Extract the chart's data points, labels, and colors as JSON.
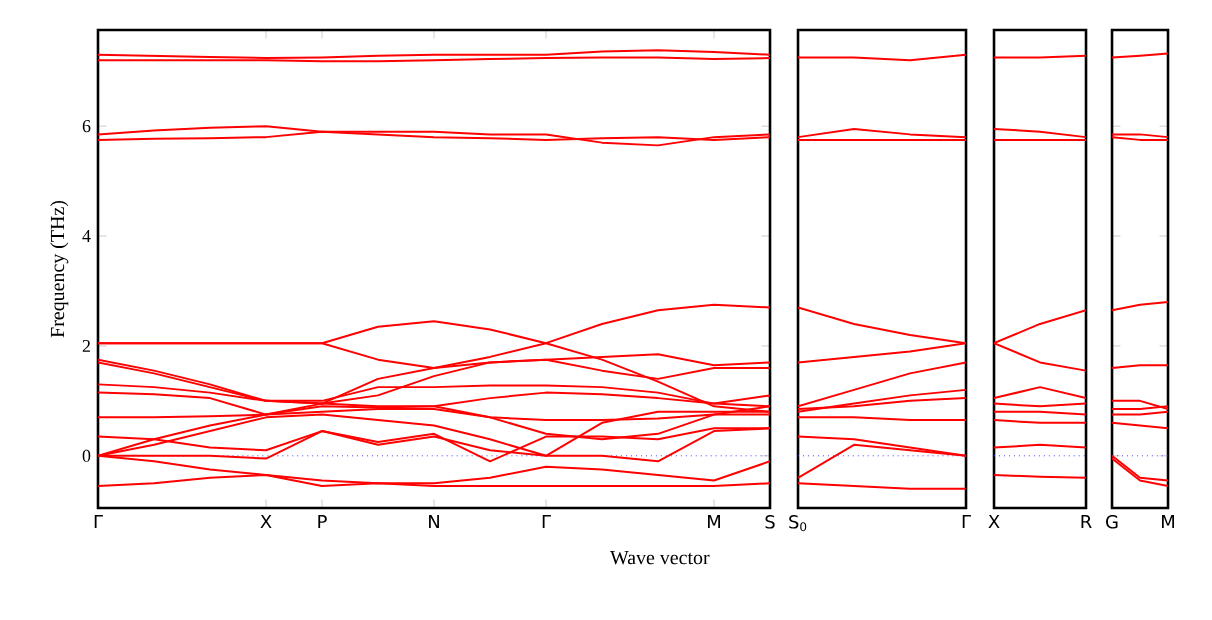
{
  "chart_data": [
    {
      "type": "line",
      "ylabel": "Frequency (THz)",
      "xlabel": "Wave vector",
      "categories": [
        "Γ",
        null,
        null,
        "X",
        "P",
        null,
        "N",
        null,
        "Γ",
        null,
        null,
        "M",
        "S"
      ],
      "ylim": [
        -0.95,
        7.75
      ],
      "yticks": [
        0,
        2,
        4,
        6
      ],
      "marker": "none",
      "line_style": "solid",
      "ref_lines": [
        {
          "axis": "y",
          "value": 0,
          "color": "#4040ff",
          "line_style": "dotted"
        }
      ],
      "series": [
        {
          "color": "#ff0000",
          "values": [
            2.05,
            2.05,
            2.05,
            2.05,
            2.05,
            2.35,
            2.45,
            2.3,
            2.05,
            1.75,
            1.35,
            0.9,
            0.8
          ]
        },
        {
          "color": "#ff0000",
          "values": [
            2.05,
            2.05,
            2.05,
            2.05,
            2.05,
            1.75,
            1.6,
            1.8,
            2.05,
            2.4,
            2.65,
            2.75,
            2.7
          ]
        },
        {
          "color": "#ff0000",
          "values": [
            1.75,
            1.55,
            1.3,
            1.0,
            0.95,
            1.4,
            1.6,
            1.7,
            1.75,
            1.8,
            1.85,
            1.65,
            1.7
          ]
        },
        {
          "color": "#ff0000",
          "values": [
            1.7,
            1.5,
            1.25,
            1.0,
            0.95,
            1.1,
            1.45,
            1.7,
            1.75,
            1.55,
            1.4,
            1.6,
            1.6
          ]
        },
        {
          "color": "#ff0000",
          "values": [
            1.3,
            1.25,
            1.15,
            1.0,
            1.0,
            1.25,
            1.25,
            1.28,
            1.28,
            1.25,
            1.15,
            0.95,
            0.9
          ]
        },
        {
          "color": "#ff0000",
          "values": [
            1.15,
            1.12,
            1.05,
            0.75,
            0.9,
            0.88,
            0.9,
            1.05,
            1.15,
            1.12,
            1.05,
            0.95,
            1.1
          ]
        },
        {
          "color": "#ff0000",
          "values": [
            0.7,
            0.7,
            0.72,
            0.75,
            0.8,
            0.85,
            0.85,
            0.7,
            0.65,
            0.65,
            0.68,
            0.75,
            0.75
          ]
        },
        {
          "color": "#ff0000",
          "values": [
            0.0,
            0.3,
            0.55,
            0.75,
            0.95,
            0.9,
            0.9,
            0.7,
            0.4,
            0.3,
            0.4,
            0.75,
            0.9
          ]
        },
        {
          "color": "#ff0000",
          "values": [
            0.0,
            0.2,
            0.45,
            0.7,
            0.75,
            0.65,
            0.55,
            0.3,
            0.0,
            0.6,
            0.8,
            0.8,
            0.8
          ]
        },
        {
          "color": "#ff0000",
          "values": [
            0.35,
            0.3,
            0.15,
            0.1,
            0.45,
            0.25,
            0.4,
            -0.1,
            0.35,
            0.35,
            0.3,
            0.5,
            0.5
          ]
        },
        {
          "color": "#ff0000",
          "values": [
            0.0,
            0.0,
            0.0,
            -0.05,
            0.45,
            0.2,
            0.35,
            0.1,
            0.0,
            0.0,
            -0.1,
            0.45,
            0.5
          ]
        },
        {
          "color": "#ff0000",
          "values": [
            0.0,
            -0.1,
            -0.25,
            -0.35,
            -0.45,
            -0.5,
            -0.5,
            -0.4,
            -0.2,
            -0.25,
            -0.35,
            -0.45,
            -0.1
          ]
        },
        {
          "color": "#ff0000",
          "values": [
            -0.55,
            -0.5,
            -0.4,
            -0.35,
            -0.55,
            -0.5,
            -0.55,
            -0.55,
            -0.55,
            -0.55,
            -0.55,
            -0.55,
            -0.5
          ]
        },
        {
          "color": "#ff0000",
          "values": [
            5.75,
            5.77,
            5.78,
            5.8,
            5.9,
            5.85,
            5.8,
            5.78,
            5.75,
            5.78,
            5.8,
            5.75,
            5.8
          ]
        },
        {
          "color": "#ff0000",
          "values": [
            5.85,
            5.92,
            5.97,
            6.0,
            5.9,
            5.9,
            5.9,
            5.85,
            5.85,
            5.7,
            5.65,
            5.8,
            5.85
          ]
        },
        {
          "color": "#ff0000",
          "values": [
            7.2,
            7.2,
            7.2,
            7.2,
            7.18,
            7.18,
            7.2,
            7.22,
            7.24,
            7.25,
            7.25,
            7.22,
            7.24
          ]
        },
        {
          "color": "#ff0000",
          "values": [
            7.3,
            7.28,
            7.26,
            7.24,
            7.25,
            7.28,
            7.3,
            7.3,
            7.3,
            7.36,
            7.38,
            7.35,
            7.3
          ]
        }
      ]
    },
    {
      "type": "line",
      "categories": [
        "S$_{0}$",
        null,
        null,
        "Γ"
      ],
      "ylim": [
        -0.95,
        7.75
      ],
      "tick_labels": "x",
      "marker": "none",
      "line_style": "solid",
      "ref_lines": [
        {
          "axis": "y",
          "value": 0,
          "color": "#4040ff",
          "line_style": "dotted"
        }
      ],
      "series": [
        {
          "color": "#ff0000",
          "values": [
            2.7,
            2.4,
            2.2,
            2.05
          ]
        },
        {
          "color": "#ff0000",
          "values": [
            1.7,
            1.8,
            1.9,
            2.05
          ]
        },
        {
          "color": "#ff0000",
          "values": [
            0.9,
            1.2,
            1.5,
            1.7
          ]
        },
        {
          "color": "#ff0000",
          "values": [
            0.8,
            0.95,
            1.1,
            1.2
          ]
        },
        {
          "color": "#ff0000",
          "values": [
            0.85,
            0.9,
            1.0,
            1.05
          ]
        },
        {
          "color": "#ff0000",
          "values": [
            0.7,
            0.7,
            0.65,
            0.65
          ]
        },
        {
          "color": "#ff0000",
          "values": [
            0.35,
            0.3,
            0.15,
            0.0
          ]
        },
        {
          "color": "#ff0000",
          "values": [
            -0.4,
            0.2,
            0.1,
            0.0
          ]
        },
        {
          "color": "#ff0000",
          "values": [
            -0.5,
            -0.55,
            -0.6,
            -0.6
          ]
        },
        {
          "color": "#ff0000",
          "values": [
            5.8,
            5.95,
            5.85,
            5.8
          ]
        },
        {
          "color": "#ff0000",
          "values": [
            5.75,
            5.75,
            5.75,
            5.75
          ]
        },
        {
          "color": "#ff0000",
          "values": [
            7.25,
            7.25,
            7.2,
            7.3
          ]
        }
      ]
    },
    {
      "type": "line",
      "categories": [
        "X",
        null,
        "R"
      ],
      "ylim": [
        -0.95,
        7.75
      ],
      "tick_labels": "x",
      "marker": "none",
      "line_style": "solid",
      "ref_lines": [
        {
          "axis": "y",
          "value": 0,
          "color": "#4040ff",
          "line_style": "dotted"
        }
      ],
      "series": [
        {
          "color": "#ff0000",
          "values": [
            2.05,
            2.4,
            2.65
          ]
        },
        {
          "color": "#ff0000",
          "values": [
            2.05,
            1.7,
            1.55
          ]
        },
        {
          "color": "#ff0000",
          "values": [
            1.05,
            1.25,
            1.05
          ]
        },
        {
          "color": "#ff0000",
          "values": [
            0.95,
            0.9,
            0.95
          ]
        },
        {
          "color": "#ff0000",
          "values": [
            0.8,
            0.8,
            0.75
          ]
        },
        {
          "color": "#ff0000",
          "values": [
            0.65,
            0.6,
            0.6
          ]
        },
        {
          "color": "#ff0000",
          "values": [
            0.15,
            0.2,
            0.15
          ]
        },
        {
          "color": "#ff0000",
          "values": [
            -0.35,
            -0.38,
            -0.4
          ]
        },
        {
          "color": "#ff0000",
          "values": [
            5.95,
            5.9,
            5.8
          ]
        },
        {
          "color": "#ff0000",
          "values": [
            5.75,
            5.75,
            5.75
          ]
        },
        {
          "color": "#ff0000",
          "values": [
            7.25,
            7.25,
            7.28
          ]
        }
      ]
    },
    {
      "type": "line",
      "categories": [
        "G",
        null,
        "M"
      ],
      "ylim": [
        -0.95,
        7.75
      ],
      "tick_labels": "x",
      "yticks": [
        0,
        2,
        4,
        6
      ],
      "marker": "none",
      "line_style": "solid",
      "ref_lines": [
        {
          "axis": "y",
          "value": 0,
          "color": "#4040ff",
          "line_style": "dotted"
        }
      ],
      "series": [
        {
          "color": "#ff0000",
          "values": [
            2.65,
            2.75,
            2.8
          ]
        },
        {
          "color": "#ff0000",
          "values": [
            1.6,
            1.65,
            1.65
          ]
        },
        {
          "color": "#ff0000",
          "values": [
            1.0,
            1.0,
            0.85
          ]
        },
        {
          "color": "#ff0000",
          "values": [
            0.85,
            0.85,
            0.9
          ]
        },
        {
          "color": "#ff0000",
          "values": [
            0.75,
            0.75,
            0.8
          ]
        },
        {
          "color": "#ff0000",
          "values": [
            0.6,
            0.55,
            0.5
          ]
        },
        {
          "color": "#ff0000",
          "values": [
            0.0,
            -0.4,
            -0.45
          ]
        },
        {
          "color": "#ff0000",
          "values": [
            -0.05,
            -0.45,
            -0.55
          ]
        },
        {
          "color": "#ff0000",
          "values": [
            5.8,
            5.75,
            5.75
          ]
        },
        {
          "color": "#ff0000",
          "values": [
            5.85,
            5.85,
            5.8
          ]
        },
        {
          "color": "#ff0000",
          "values": [
            7.25,
            7.28,
            7.32
          ]
        }
      ]
    }
  ]
}
